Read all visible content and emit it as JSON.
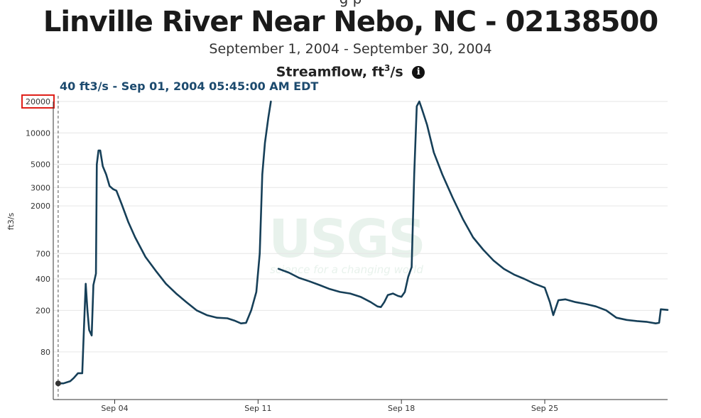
{
  "header": {
    "clipped_line": "g          p",
    "title": "Linville River Near Nebo, NC - 02138500",
    "date_range": "September 1, 2004 - September 30, 2004",
    "parameter": "Streamflow, ft",
    "parameter_sup": "3",
    "parameter_suffix": "/s",
    "info_icon": "info-circle-icon"
  },
  "readout": {
    "text": "40 ft3/s - Sep 01, 2004 05:45:00 AM EDT",
    "value": 40,
    "unit": "ft3/s",
    "time": "Sep 01, 2004 05:45:00 AM EDT"
  },
  "watermark": {
    "logo": "USGS",
    "tagline": "science for a changing world"
  },
  "colors": {
    "series": "#163f58",
    "grid": "#e6e6e6",
    "highlight_box": "#e0201a",
    "cursor_line": "#555555",
    "watermark": "#e8f2ec"
  },
  "chart_data": {
    "type": "line",
    "ylabel": "ft3/s",
    "y_scale": "log",
    "ylim": [
      28,
      20000
    ],
    "xlim": [
      "2004-09-01T00:00",
      "2004-09-30T23:59"
    ],
    "y_ticks": [
      {
        "value": 80,
        "label": "80"
      },
      {
        "value": 200,
        "label": "200"
      },
      {
        "value": 400,
        "label": "400"
      },
      {
        "value": 700,
        "label": "700"
      },
      {
        "value": 2000,
        "label": "2000"
      },
      {
        "value": 3000,
        "label": "3000"
      },
      {
        "value": 5000,
        "label": "5000"
      },
      {
        "value": 10000,
        "label": "10000"
      },
      {
        "value": 20000,
        "label": "20000",
        "highlighted": true
      }
    ],
    "x_ticks": [
      {
        "date": "2004-09-04",
        "label": "Sep 04"
      },
      {
        "date": "2004-09-11",
        "label": "Sep 11"
      },
      {
        "date": "2004-09-18",
        "label": "Sep 18"
      },
      {
        "date": "2004-09-25",
        "label": "Sep 25"
      }
    ],
    "cursor": {
      "date": "2004-09-01T05:45",
      "value": 40
    },
    "grid": true,
    "series": [
      {
        "segments": [
          [
            [
              "2004-09-01T05:45",
              40
            ],
            [
              "2004-09-01T12:00",
              40
            ],
            [
              "2004-09-01T20:00",
              42
            ],
            [
              "2004-09-02T00:00",
              45
            ],
            [
              "2004-09-02T05:00",
              50
            ],
            [
              "2004-09-02T10:00",
              50
            ],
            [
              "2004-09-02T12:00",
              140
            ],
            [
              "2004-09-02T14:00",
              360
            ],
            [
              "2004-09-02T16:00",
              200
            ],
            [
              "2004-09-02T18:00",
              130
            ],
            [
              "2004-09-02T21:00",
              115
            ],
            [
              "2004-09-02T23:00",
              350
            ],
            [
              "2004-09-03T02:00",
              450
            ],
            [
              "2004-09-03T03:00",
              5000
            ],
            [
              "2004-09-03T05:00",
              6800
            ],
            [
              "2004-09-03T07:00",
              6800
            ],
            [
              "2004-09-03T10:00",
              4800
            ],
            [
              "2004-09-03T14:00",
              4000
            ],
            [
              "2004-09-03T18:00",
              3100
            ],
            [
              "2004-09-03T22:00",
              2900
            ],
            [
              "2004-09-04T02:00",
              2800
            ],
            [
              "2004-09-04T08:00",
              2100
            ],
            [
              "2004-09-04T16:00",
              1400
            ],
            [
              "2004-09-05T00:00",
              1000
            ],
            [
              "2004-09-05T12:00",
              650
            ],
            [
              "2004-09-06T00:00",
              480
            ],
            [
              "2004-09-06T12:00",
              360
            ],
            [
              "2004-09-07T00:00",
              290
            ],
            [
              "2004-09-07T12:00",
              240
            ],
            [
              "2004-09-08T00:00",
              200
            ],
            [
              "2004-09-08T12:00",
              180
            ],
            [
              "2004-09-09T00:00",
              170
            ],
            [
              "2004-09-09T12:00",
              168
            ],
            [
              "2004-09-09T20:00",
              160
            ],
            [
              "2004-09-10T04:00",
              150
            ],
            [
              "2004-09-10T10:00",
              152
            ],
            [
              "2004-09-10T16:00",
              200
            ],
            [
              "2004-09-10T22:00",
              300
            ],
            [
              "2004-09-11T02:00",
              700
            ],
            [
              "2004-09-11T05:00",
              4000
            ],
            [
              "2004-09-11T08:00",
              8000
            ],
            [
              "2004-09-11T12:00",
              14000
            ],
            [
              "2004-09-11T15:00",
              20000
            ]
          ],
          [
            [
              "2004-09-12T00:00",
              500
            ],
            [
              "2004-09-12T12:00",
              460
            ],
            [
              "2004-09-13T00:00",
              410
            ],
            [
              "2004-09-13T12:00",
              380
            ],
            [
              "2004-09-14T00:00",
              350
            ],
            [
              "2004-09-14T12:00",
              320
            ],
            [
              "2004-09-15T00:00",
              300
            ],
            [
              "2004-09-15T12:00",
              290
            ],
            [
              "2004-09-16T00:00",
              270
            ],
            [
              "2004-09-16T12:00",
              240
            ],
            [
              "2004-09-16T20:00",
              218
            ],
            [
              "2004-09-17T00:00",
              215
            ],
            [
              "2004-09-17T04:00",
              240
            ],
            [
              "2004-09-17T08:00",
              280
            ],
            [
              "2004-09-17T14:00",
              290
            ],
            [
              "2004-09-17T20:00",
              275
            ],
            [
              "2004-09-18T00:00",
              270
            ],
            [
              "2004-09-18T04:00",
              300
            ],
            [
              "2004-09-18T08:00",
              420
            ],
            [
              "2004-09-18T12:00",
              520
            ],
            [
              "2004-09-18T15:00",
              4000
            ],
            [
              "2004-09-18T18:00",
              18000
            ],
            [
              "2004-09-18T21:00",
              20000
            ],
            [
              "2004-09-19T00:00",
              17000
            ],
            [
              "2004-09-19T06:00",
              12000
            ],
            [
              "2004-09-19T14:00",
              6500
            ],
            [
              "2004-09-20T00:00",
              4000
            ],
            [
              "2004-09-20T12:00",
              2400
            ],
            [
              "2004-09-21T00:00",
              1500
            ],
            [
              "2004-09-21T12:00",
              1000
            ],
            [
              "2004-09-22T00:00",
              760
            ],
            [
              "2004-09-22T12:00",
              600
            ],
            [
              "2004-09-23T00:00",
              500
            ],
            [
              "2004-09-23T12:00",
              440
            ],
            [
              "2004-09-24T00:00",
              400
            ],
            [
              "2004-09-24T12:00",
              360
            ],
            [
              "2004-09-25T00:00",
              330
            ],
            [
              "2004-09-25T06:00",
              240
            ],
            [
              "2004-09-25T10:00",
              180
            ],
            [
              "2004-09-25T16:00",
              250
            ],
            [
              "2004-09-26T00:00",
              255
            ],
            [
              "2004-09-26T12:00",
              240
            ],
            [
              "2004-09-27T00:00",
              230
            ],
            [
              "2004-09-27T12:00",
              218
            ],
            [
              "2004-09-28T00:00",
              200
            ],
            [
              "2004-09-28T12:00",
              170
            ],
            [
              "2004-09-29T00:00",
              162
            ],
            [
              "2004-09-29T12:00",
              158
            ],
            [
              "2004-09-30T00:00",
              155
            ],
            [
              "2004-09-30T10:00",
              150
            ],
            [
              "2004-09-30T14:00",
              152
            ],
            [
              "2004-09-30T16:00",
              205
            ],
            [
              "2004-09-30T23:59",
              202
            ]
          ]
        ]
      }
    ]
  }
}
